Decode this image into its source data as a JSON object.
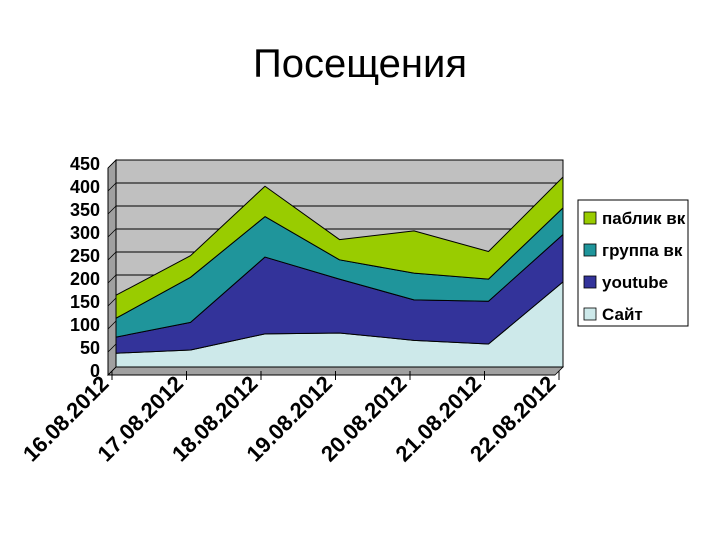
{
  "chart_data": {
    "type": "area",
    "stacked": true,
    "title": "Посещения",
    "xlabel": "",
    "ylabel": "",
    "categories": [
      "16.08.2012",
      "17.08.2012",
      "18.08.2012",
      "19.08.2012",
      "20.08.2012",
      "21.08.2012",
      "22.08.2012"
    ],
    "ylim": [
      0,
      450
    ],
    "yticks": [
      0,
      50,
      100,
      150,
      200,
      250,
      300,
      350,
      400,
      450
    ],
    "grid": true,
    "legend_position": "right",
    "plot_background": "#c0c0c0",
    "series": [
      {
        "name": "Сайт",
        "color": "#cde9ea",
        "values": [
          30,
          37,
          72,
          74,
          58,
          50,
          185
        ]
      },
      {
        "name": "youtube",
        "color": "#33339a",
        "values": [
          35,
          60,
          167,
          117,
          88,
          93,
          103
        ]
      },
      {
        "name": "группа вк",
        "color": "#1f959b",
        "values": [
          41,
          98,
          88,
          42,
          58,
          48,
          58
        ]
      },
      {
        "name": "паблик вк",
        "color": "#99cc00",
        "values": [
          50,
          47,
          66,
          44,
          92,
          60,
          67
        ]
      }
    ]
  }
}
